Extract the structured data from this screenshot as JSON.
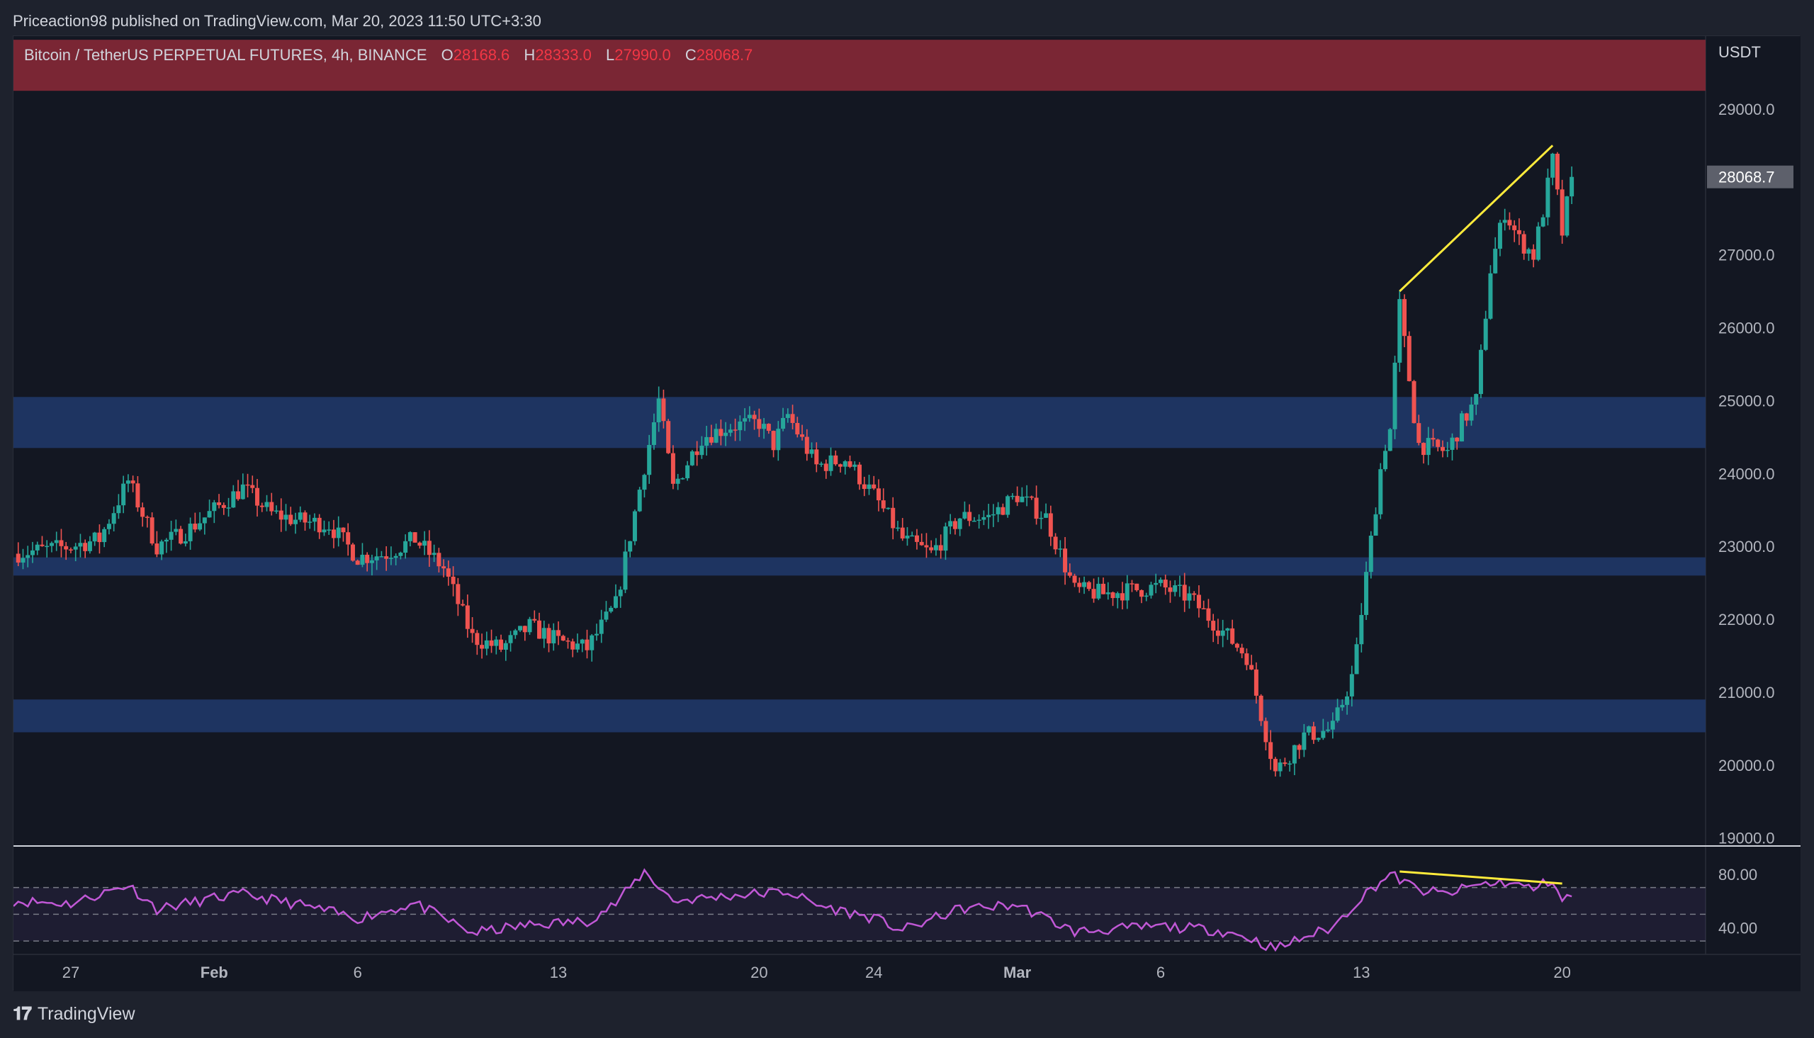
{
  "header": {
    "publisher_line": "Priceaction98 published on TradingView.com, Mar 20, 2023 11:50 UTC+3:30"
  },
  "legend": {
    "symbol": "Bitcoin / TetherUS PERPETUAL FUTURES, 4h, BINANCE",
    "o_label": "O",
    "o_value": "28168.6",
    "h_label": "H",
    "h_value": "28333.0",
    "l_label": "L",
    "l_value": "27990.0",
    "c_label": "C",
    "c_value": "28068.7"
  },
  "footer": {
    "logo_glyph": "𝟏𝟕",
    "brand": "TradingView"
  },
  "colors": {
    "up": "#26a69a",
    "down": "#ef5350",
    "supply_zone": "#7a2634",
    "demand_zone": "#1e3461",
    "trendline": "#ffeb3b",
    "rsi": "#c158d6",
    "background": "#131722"
  },
  "chart_data": [
    {
      "type": "candlestick",
      "interval": "4h",
      "currency_label": "USDT",
      "last_price_label": "28068.7",
      "last_price": 28068.7,
      "ylim": [
        18900,
        30000
      ],
      "yticks": [
        19000,
        20000,
        21000,
        22000,
        23000,
        24000,
        25000,
        26000,
        27000,
        28000,
        29000
      ],
      "ytick_labels": [
        "19000.0",
        "20000.0",
        "21000.0",
        "22000.0",
        "23000.0",
        "24000.0",
        "25000.0",
        "26000.0",
        "27000.0",
        "28000.0",
        "29000.0"
      ],
      "x_axis": {
        "labels": [
          "27",
          "Feb",
          "6",
          "13",
          "20",
          "24",
          "Mar",
          "6",
          "13",
          "20"
        ],
        "label_dates": [
          "2023-01-27",
          "2023-02-01",
          "2023-02-06",
          "2023-02-13",
          "2023-02-20",
          "2023-02-24",
          "2023-03-01",
          "2023-03-06",
          "2023-03-13",
          "2023-03-20"
        ],
        "range": [
          "2023-01-25",
          "2023-03-25"
        ]
      },
      "price_path": [
        [
          "2023-01-25",
          22900
        ],
        [
          "2023-01-27",
          23000
        ],
        [
          "2023-01-28",
          23100
        ],
        [
          "2023-01-29",
          23900
        ],
        [
          "2023-01-30",
          23000
        ],
        [
          "2023-01-31",
          23200
        ],
        [
          "2023-02-01",
          23500
        ],
        [
          "2023-02-02",
          23800
        ],
        [
          "2023-02-03",
          23450
        ],
        [
          "2023-02-04",
          23350
        ],
        [
          "2023-02-05",
          23300
        ],
        [
          "2023-02-06",
          22850
        ],
        [
          "2023-02-07",
          22900
        ],
        [
          "2023-02-08",
          23100
        ],
        [
          "2023-02-09",
          22700
        ],
        [
          "2023-02-10",
          21750
        ],
        [
          "2023-02-11",
          21600
        ],
        [
          "2023-02-12",
          21900
        ],
        [
          "2023-02-13",
          21700
        ],
        [
          "2023-02-14",
          21600
        ],
        [
          "2023-02-15",
          22200
        ],
        [
          "2023-02-16",
          24100
        ],
        [
          "2023-02-16T12:00",
          25000
        ],
        [
          "2023-02-17",
          23800
        ],
        [
          "2023-02-18",
          24500
        ],
        [
          "2023-02-19",
          24650
        ],
        [
          "2023-02-20",
          24700
        ],
        [
          "2023-02-20T12:00",
          24400
        ],
        [
          "2023-02-21",
          24800
        ],
        [
          "2023-02-22",
          24100
        ],
        [
          "2023-02-23",
          24200
        ],
        [
          "2023-02-24",
          23700
        ],
        [
          "2023-02-25",
          23100
        ],
        [
          "2023-02-26",
          22900
        ],
        [
          "2023-02-27",
          23400
        ],
        [
          "2023-02-28",
          23400
        ],
        [
          "2023-03-01",
          23700
        ],
        [
          "2023-03-02",
          23400
        ],
        [
          "2023-03-03",
          22400
        ],
        [
          "2023-03-04",
          22350
        ],
        [
          "2023-03-05",
          22400
        ],
        [
          "2023-03-06",
          22450
        ],
        [
          "2023-03-07",
          22300
        ],
        [
          "2023-03-08",
          21900
        ],
        [
          "2023-03-09",
          21500
        ],
        [
          "2023-03-09T18:00",
          20300
        ],
        [
          "2023-03-10",
          19900
        ],
        [
          "2023-03-11",
          20400
        ],
        [
          "2023-03-12",
          20500
        ],
        [
          "2023-03-12T18:00",
          21300
        ],
        [
          "2023-03-13",
          22100
        ],
        [
          "2023-03-13T18:00",
          24300
        ],
        [
          "2023-03-14",
          24600
        ],
        [
          "2023-03-14T08:00",
          26300
        ],
        [
          "2023-03-14T20:00",
          24800
        ],
        [
          "2023-03-15",
          24400
        ],
        [
          "2023-03-16",
          24300
        ],
        [
          "2023-03-16T12:00",
          24700
        ],
        [
          "2023-03-17",
          25000
        ],
        [
          "2023-03-17T12:00",
          26800
        ],
        [
          "2023-03-18",
          27600
        ],
        [
          "2023-03-18T12:00",
          27200
        ],
        [
          "2023-03-19",
          27000
        ],
        [
          "2023-03-19T08:00",
          27600
        ],
        [
          "2023-03-19T16:00",
          28300
        ],
        [
          "2023-03-20",
          27300
        ],
        [
          "2023-03-20T08:00",
          28068.7
        ]
      ],
      "zones": [
        {
          "kind": "supply",
          "low": 29250,
          "high": 29950
        },
        {
          "kind": "demand",
          "low": 24350,
          "high": 25050
        },
        {
          "kind": "demand",
          "low": 22600,
          "high": 22850
        },
        {
          "kind": "demand",
          "low": 20450,
          "high": 20900
        }
      ],
      "trendline": {
        "from": [
          "2023-03-14T08:00",
          26500
        ],
        "to": [
          "2023-03-19T16:00",
          28500
        ]
      }
    },
    {
      "type": "line",
      "indicator": "RSI",
      "ylim": [
        20,
        100
      ],
      "yticks": [
        40,
        80
      ],
      "ytick_labels": [
        "40.00",
        "80.00"
      ],
      "bands": [
        30,
        50,
        70
      ],
      "series": [
        {
          "values": [
            [
              "2023-01-25",
              60
            ],
            [
              "2023-01-27",
              58
            ],
            [
              "2023-01-29",
              72
            ],
            [
              "2023-01-30",
              54
            ],
            [
              "2023-02-01",
              62
            ],
            [
              "2023-02-02",
              65
            ],
            [
              "2023-02-04",
              57
            ],
            [
              "2023-02-06",
              47
            ],
            [
              "2023-02-08",
              58
            ],
            [
              "2023-02-10",
              36
            ],
            [
              "2023-02-12",
              42
            ],
            [
              "2023-02-14",
              45
            ],
            [
              "2023-02-15",
              58
            ],
            [
              "2023-02-16",
              82
            ],
            [
              "2023-02-17",
              60
            ],
            [
              "2023-02-19",
              64
            ],
            [
              "2023-02-21",
              67
            ],
            [
              "2023-02-22",
              57
            ],
            [
              "2023-02-24",
              47
            ],
            [
              "2023-02-25",
              38
            ],
            [
              "2023-02-27",
              54
            ],
            [
              "2023-03-01",
              57
            ],
            [
              "2023-03-03",
              37
            ],
            [
              "2023-03-06",
              41
            ],
            [
              "2023-03-08",
              38
            ],
            [
              "2023-03-09",
              33
            ],
            [
              "2023-03-10",
              24
            ],
            [
              "2023-03-11",
              33
            ],
            [
              "2023-03-12",
              40
            ],
            [
              "2023-03-13",
              63
            ],
            [
              "2023-03-14",
              80
            ],
            [
              "2023-03-15",
              68
            ],
            [
              "2023-03-16",
              65
            ],
            [
              "2023-03-17",
              72
            ],
            [
              "2023-03-18",
              74
            ],
            [
              "2023-03-19",
              69
            ],
            [
              "2023-03-19T16:00",
              76
            ],
            [
              "2023-03-20",
              60
            ],
            [
              "2023-03-20T08:00",
              64
            ]
          ]
        }
      ],
      "divergence_line": {
        "from": [
          "2023-03-14T08:00",
          82
        ],
        "to": [
          "2023-03-20",
          73
        ]
      }
    }
  ]
}
